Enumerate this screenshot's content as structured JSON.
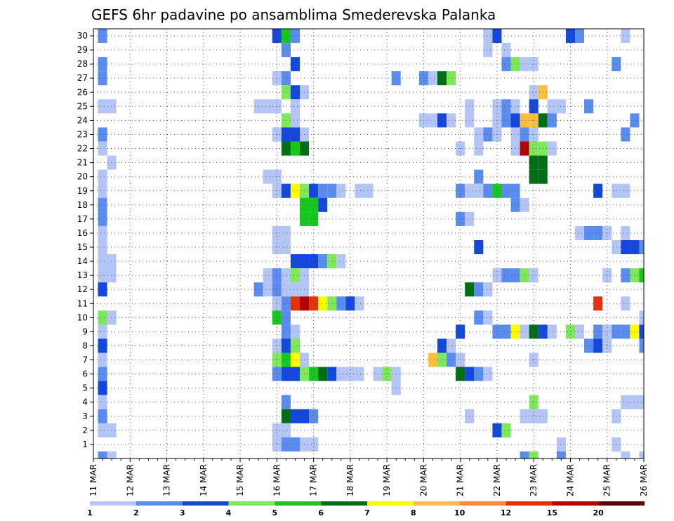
{
  "chart_data": {
    "type": "heatmap",
    "title": "GEFS 6hr padavine po ansamblima Smederevska Palanka",
    "xlabel": "",
    "ylabel": "",
    "x_start_day": 11,
    "x_tick_labels": [
      "11 MAR",
      "12 MAR",
      "13 MAR",
      "14 MAR",
      "15 MAR",
      "16 MAR",
      "17 MAR",
      "18 MAR",
      "19 MAR",
      "20 MAR",
      "21 MAR",
      "22 MAR",
      "23 MAR",
      "24 MAR",
      "25 MAR",
      "26 MAR"
    ],
    "y_tick_labels": [
      "1",
      "2",
      "3",
      "4",
      "5",
      "6",
      "7",
      "8",
      "9",
      "10",
      "11",
      "12",
      "13",
      "14",
      "15",
      "16",
      "17",
      "18",
      "19",
      "20",
      "21",
      "22",
      "23",
      "24",
      "25",
      "26",
      "27",
      "28",
      "29",
      "30"
    ],
    "xlim_days": [
      11,
      26
    ],
    "ylim_members": [
      0,
      30
    ],
    "time_step_hours": 6,
    "grid": true,
    "legend": "bottom",
    "colorbar": {
      "labels": [
        "1",
        "2",
        "3",
        "4",
        "5",
        "6",
        "7",
        "8",
        "10",
        "12",
        "15",
        "20"
      ],
      "colors": [
        "#b4c4f4",
        "#5a8cf0",
        "#1448dc",
        "#7ce85a",
        "#14c81e",
        "#006e14",
        "#ffff00",
        "#ffbe3c",
        "#ff8c1e",
        "#e6320a",
        "#b40000",
        "#5a0000"
      ]
    },
    "cells": [
      [
        11.25,
        30,
        2
      ],
      [
        16,
        30,
        3
      ],
      [
        16.25,
        30,
        5
      ],
      [
        16.5,
        30,
        2
      ],
      [
        21.75,
        30,
        1
      ],
      [
        22,
        30,
        3
      ],
      [
        24,
        30,
        3
      ],
      [
        24.25,
        30,
        2
      ],
      [
        25.5,
        30,
        1
      ],
      [
        16.25,
        29,
        2
      ],
      [
        21.75,
        29,
        1
      ],
      [
        22.25,
        29,
        1
      ],
      [
        11.25,
        28,
        2
      ],
      [
        16.5,
        28,
        3
      ],
      [
        22.25,
        28,
        2
      ],
      [
        22.5,
        28,
        4
      ],
      [
        22.75,
        28,
        1
      ],
      [
        23,
        28,
        1
      ],
      [
        25.25,
        28,
        2
      ],
      [
        11.25,
        27,
        2
      ],
      [
        16,
        27,
        1
      ],
      [
        16.25,
        27,
        2
      ],
      [
        19.25,
        27,
        2
      ],
      [
        20,
        27,
        2
      ],
      [
        20.25,
        27,
        1
      ],
      [
        20.5,
        27,
        6
      ],
      [
        20.75,
        27,
        4
      ],
      [
        16.25,
        26,
        4
      ],
      [
        16.5,
        26,
        3
      ],
      [
        16.75,
        26,
        1
      ],
      [
        23,
        26,
        1
      ],
      [
        23.25,
        26,
        8
      ],
      [
        11.25,
        25,
        1
      ],
      [
        11.5,
        25,
        1
      ],
      [
        15.5,
        25,
        1
      ],
      [
        15.75,
        25,
        1
      ],
      [
        16,
        25,
        1
      ],
      [
        16.5,
        25,
        1
      ],
      [
        21.25,
        25,
        1
      ],
      [
        22,
        25,
        1
      ],
      [
        22.25,
        25,
        2
      ],
      [
        22.5,
        25,
        1
      ],
      [
        23,
        25,
        3
      ],
      [
        23.5,
        25,
        1
      ],
      [
        23.75,
        25,
        1
      ],
      [
        24.5,
        25,
        2
      ],
      [
        16.25,
        24,
        4
      ],
      [
        16.5,
        24,
        1
      ],
      [
        20,
        24,
        1
      ],
      [
        20.25,
        24,
        1
      ],
      [
        20.5,
        24,
        3
      ],
      [
        20.75,
        24,
        1
      ],
      [
        21.25,
        24,
        1
      ],
      [
        22,
        24,
        1
      ],
      [
        22.25,
        24,
        2
      ],
      [
        22.5,
        24,
        3
      ],
      [
        22.75,
        24,
        8
      ],
      [
        23,
        24,
        8
      ],
      [
        23.25,
        24,
        6
      ],
      [
        23.5,
        24,
        2
      ],
      [
        25.75,
        24,
        2
      ],
      [
        11.25,
        23,
        2
      ],
      [
        16,
        23,
        1
      ],
      [
        16.25,
        23,
        3
      ],
      [
        16.5,
        23,
        3
      ],
      [
        16.75,
        23,
        1
      ],
      [
        21.5,
        23,
        1
      ],
      [
        21.75,
        23,
        2
      ],
      [
        22,
        23,
        1
      ],
      [
        22.5,
        23,
        1
      ],
      [
        22.75,
        23,
        2
      ],
      [
        23,
        23,
        1
      ],
      [
        25.5,
        23,
        2
      ],
      [
        11.25,
        22,
        1
      ],
      [
        16.25,
        22,
        6
      ],
      [
        16.5,
        22,
        5
      ],
      [
        16.75,
        22,
        6
      ],
      [
        21,
        22,
        1
      ],
      [
        21.5,
        22,
        1
      ],
      [
        22.5,
        22,
        1
      ],
      [
        22.75,
        22,
        11
      ],
      [
        23,
        22,
        4
      ],
      [
        23.25,
        22,
        4
      ],
      [
        23.5,
        22,
        1
      ],
      [
        11.5,
        21,
        1
      ],
      [
        23,
        21,
        6
      ],
      [
        23.25,
        21,
        6
      ],
      [
        11.25,
        20,
        1
      ],
      [
        15.75,
        20,
        1
      ],
      [
        16,
        20,
        1
      ],
      [
        21.5,
        20,
        2
      ],
      [
        23,
        20,
        6
      ],
      [
        23.25,
        20,
        6
      ],
      [
        11.25,
        19,
        1
      ],
      [
        16,
        19,
        1
      ],
      [
        16.25,
        19,
        3
      ],
      [
        16.5,
        19,
        7
      ],
      [
        16.75,
        19,
        4
      ],
      [
        17,
        19,
        3
      ],
      [
        17.25,
        19,
        2
      ],
      [
        17.5,
        19,
        2
      ],
      [
        17.75,
        19,
        1
      ],
      [
        18.25,
        19,
        1
      ],
      [
        18.5,
        19,
        1
      ],
      [
        21,
        19,
        2
      ],
      [
        21.25,
        19,
        1
      ],
      [
        21.5,
        19,
        1
      ],
      [
        21.75,
        19,
        2
      ],
      [
        22,
        19,
        5
      ],
      [
        22.25,
        19,
        2
      ],
      [
        22.5,
        19,
        2
      ],
      [
        24.75,
        19,
        3
      ],
      [
        25.25,
        19,
        1
      ],
      [
        25.5,
        19,
        1
      ],
      [
        11.25,
        18,
        2
      ],
      [
        16.75,
        18,
        5
      ],
      [
        17,
        18,
        5
      ],
      [
        17.25,
        18,
        3
      ],
      [
        22.5,
        18,
        2
      ],
      [
        22.75,
        18,
        1
      ],
      [
        11.25,
        17,
        2
      ],
      [
        16.75,
        17,
        5
      ],
      [
        17,
        17,
        5
      ],
      [
        21,
        17,
        2
      ],
      [
        21.25,
        17,
        1
      ],
      [
        11.25,
        16,
        1
      ],
      [
        16,
        16,
        1
      ],
      [
        16.25,
        16,
        1
      ],
      [
        24.25,
        16,
        1
      ],
      [
        24.5,
        16,
        2
      ],
      [
        24.75,
        16,
        2
      ],
      [
        25,
        16,
        1
      ],
      [
        25.5,
        16,
        1
      ],
      [
        11.25,
        15,
        1
      ],
      [
        16,
        15,
        1
      ],
      [
        16.25,
        15,
        1
      ],
      [
        21.5,
        15,
        3
      ],
      [
        25.25,
        15,
        1
      ],
      [
        25.5,
        15,
        3
      ],
      [
        25.75,
        15,
        3
      ],
      [
        26,
        15,
        2
      ],
      [
        11.25,
        14,
        1
      ],
      [
        11.5,
        14,
        1
      ],
      [
        16.5,
        14,
        3
      ],
      [
        16.75,
        14,
        3
      ],
      [
        17,
        14,
        3
      ],
      [
        17.25,
        14,
        2
      ],
      [
        17.5,
        14,
        4
      ],
      [
        17.75,
        14,
        1
      ],
      [
        11.25,
        13,
        1
      ],
      [
        11.5,
        13,
        1
      ],
      [
        15.75,
        13,
        1
      ],
      [
        16,
        13,
        2
      ],
      [
        16.25,
        13,
        1
      ],
      [
        16.5,
        13,
        4
      ],
      [
        16.75,
        13,
        1
      ],
      [
        22,
        13,
        1
      ],
      [
        22.25,
        13,
        2
      ],
      [
        22.5,
        13,
        2
      ],
      [
        22.75,
        13,
        4
      ],
      [
        23,
        13,
        1
      ],
      [
        25,
        13,
        1
      ],
      [
        25.5,
        13,
        2
      ],
      [
        25.75,
        13,
        4
      ],
      [
        26,
        13,
        5
      ],
      [
        11.25,
        12,
        3
      ],
      [
        15.5,
        12,
        2
      ],
      [
        15.75,
        12,
        1
      ],
      [
        16,
        12,
        2
      ],
      [
        16.25,
        12,
        1
      ],
      [
        16.5,
        12,
        1
      ],
      [
        16.75,
        12,
        1
      ],
      [
        21.25,
        12,
        6
      ],
      [
        21.5,
        12,
        2
      ],
      [
        21.75,
        12,
        1
      ],
      [
        16,
        11,
        1
      ],
      [
        16.25,
        11,
        2
      ],
      [
        16.5,
        11,
        10
      ],
      [
        16.75,
        11,
        11
      ],
      [
        17,
        11,
        10
      ],
      [
        17.25,
        11,
        7
      ],
      [
        17.5,
        11,
        4
      ],
      [
        17.75,
        11,
        2
      ],
      [
        18,
        11,
        3
      ],
      [
        18.25,
        11,
        1
      ],
      [
        24.75,
        11,
        10
      ],
      [
        25.5,
        11,
        1
      ],
      [
        11.25,
        10,
        4
      ],
      [
        11.5,
        10,
        1
      ],
      [
        16,
        10,
        5
      ],
      [
        16.25,
        10,
        2
      ],
      [
        21.5,
        10,
        2
      ],
      [
        21.75,
        10,
        1
      ],
      [
        26,
        10,
        1
      ],
      [
        11.25,
        9,
        1
      ],
      [
        16.25,
        9,
        2
      ],
      [
        16.5,
        9,
        1
      ],
      [
        21,
        9,
        3
      ],
      [
        22,
        9,
        2
      ],
      [
        22.25,
        9,
        2
      ],
      [
        22.5,
        9,
        7
      ],
      [
        22.75,
        9,
        1
      ],
      [
        23,
        9,
        6
      ],
      [
        23.25,
        9,
        3
      ],
      [
        23.5,
        9,
        1
      ],
      [
        24,
        9,
        4
      ],
      [
        24.25,
        9,
        1
      ],
      [
        24.75,
        9,
        2
      ],
      [
        25,
        9,
        1
      ],
      [
        25.25,
        9,
        2
      ],
      [
        25.5,
        9,
        2
      ],
      [
        25.75,
        9,
        7
      ],
      [
        26,
        9,
        3
      ],
      [
        11.25,
        8,
        3
      ],
      [
        16,
        8,
        1
      ],
      [
        16.25,
        8,
        3
      ],
      [
        16.5,
        8,
        4
      ],
      [
        20.5,
        8,
        3
      ],
      [
        20.75,
        8,
        1
      ],
      [
        24.5,
        8,
        2
      ],
      [
        24.75,
        8,
        3
      ],
      [
        25,
        8,
        1
      ],
      [
        26,
        8,
        2
      ],
      [
        11.25,
        7,
        1
      ],
      [
        16,
        7,
        4
      ],
      [
        16.25,
        7,
        5
      ],
      [
        16.5,
        7,
        7
      ],
      [
        16.75,
        7,
        1
      ],
      [
        20.25,
        7,
        8
      ],
      [
        20.5,
        7,
        4
      ],
      [
        20.75,
        7,
        2
      ],
      [
        21,
        7,
        1
      ],
      [
        23,
        7,
        1
      ],
      [
        11.25,
        6,
        2
      ],
      [
        16,
        6,
        2
      ],
      [
        16.25,
        6,
        3
      ],
      [
        16.5,
        6,
        3
      ],
      [
        16.75,
        6,
        4
      ],
      [
        17,
        6,
        5
      ],
      [
        17.25,
        6,
        6
      ],
      [
        17.5,
        6,
        3
      ],
      [
        17.75,
        6,
        1
      ],
      [
        18,
        6,
        1
      ],
      [
        18.25,
        6,
        1
      ],
      [
        18.75,
        6,
        1
      ],
      [
        19,
        6,
        4
      ],
      [
        19.25,
        6,
        1
      ],
      [
        21,
        6,
        6
      ],
      [
        21.25,
        6,
        3
      ],
      [
        21.5,
        6,
        2
      ],
      [
        21.75,
        6,
        1
      ],
      [
        11.25,
        5,
        3
      ],
      [
        19.25,
        5,
        1
      ],
      [
        11.25,
        4,
        1
      ],
      [
        16.25,
        4,
        2
      ],
      [
        23,
        4,
        4
      ],
      [
        25.5,
        4,
        1
      ],
      [
        25.75,
        4,
        1
      ],
      [
        26,
        4,
        1
      ],
      [
        11.25,
        3,
        2
      ],
      [
        16.25,
        3,
        6
      ],
      [
        16.5,
        3,
        3
      ],
      [
        16.75,
        3,
        3
      ],
      [
        17,
        3,
        2
      ],
      [
        21.25,
        3,
        1
      ],
      [
        22.75,
        3,
        1
      ],
      [
        23,
        3,
        1
      ],
      [
        23.25,
        3,
        1
      ],
      [
        25.25,
        3,
        1
      ],
      [
        11.25,
        2,
        1
      ],
      [
        11.5,
        2,
        1
      ],
      [
        16,
        2,
        1
      ],
      [
        16.25,
        2,
        1
      ],
      [
        22,
        2,
        3
      ],
      [
        22.25,
        2,
        4
      ],
      [
        16,
        1,
        1
      ],
      [
        16.25,
        1,
        2
      ],
      [
        16.5,
        1,
        2
      ],
      [
        16.75,
        1,
        1
      ],
      [
        17,
        1,
        1
      ],
      [
        23.75,
        1,
        1
      ],
      [
        25.25,
        1,
        1
      ],
      [
        11.25,
        0,
        2
      ],
      [
        11.5,
        0,
        1
      ],
      [
        22.75,
        0,
        2
      ],
      [
        23,
        0,
        4
      ],
      [
        23.75,
        0,
        2
      ],
      [
        25.5,
        0,
        1
      ],
      [
        26,
        0,
        1
      ]
    ]
  }
}
